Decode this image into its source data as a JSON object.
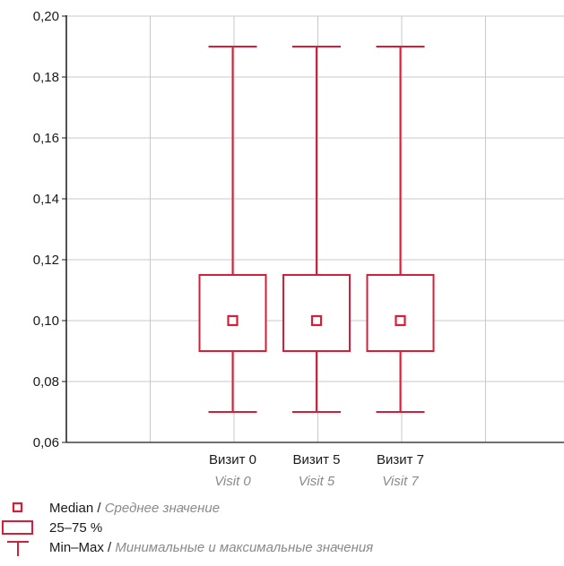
{
  "colors": {
    "series": "#d41f3a",
    "grid": "#c8c8c8",
    "axis": "#1a1a1a"
  },
  "chart_data": {
    "type": "box",
    "title": "",
    "xlabel": "",
    "ylabel": "",
    "ylim": [
      0.06,
      0.2
    ],
    "y_ticks": [
      0.06,
      0.08,
      0.1,
      0.12,
      0.14,
      0.16,
      0.18,
      0.2
    ],
    "y_tick_labels": [
      "0,06",
      "0,08",
      "0,10",
      "0,12",
      "0,14",
      "0,16",
      "0,18",
      "0,20"
    ],
    "grid": true,
    "categories": [
      {
        "label": "Визит 0",
        "sublabel": "Visit 0",
        "min": 0.07,
        "q1": 0.09,
        "median": 0.1,
        "q3": 0.115,
        "max": 0.19
      },
      {
        "label": "Визит 5",
        "sublabel": "Visit 5",
        "min": 0.07,
        "q1": 0.09,
        "median": 0.1,
        "q3": 0.115,
        "max": 0.19
      },
      {
        "label": "Визит 7",
        "sublabel": "Visit 7",
        "min": 0.07,
        "q1": 0.09,
        "median": 0.1,
        "q3": 0.115,
        "max": 0.19
      }
    ],
    "legend": {
      "position": "bottom-left",
      "items": [
        {
          "symbol": "median",
          "text": "Median",
          "separator": " / ",
          "text_translated": "Среднее значение"
        },
        {
          "symbol": "box",
          "text": "25–75 %",
          "separator": "",
          "text_translated": ""
        },
        {
          "symbol": "whisker",
          "text": "Min–Max",
          "separator": " / ",
          "text_translated": "Минимальные и максимальные значения"
        }
      ]
    }
  }
}
